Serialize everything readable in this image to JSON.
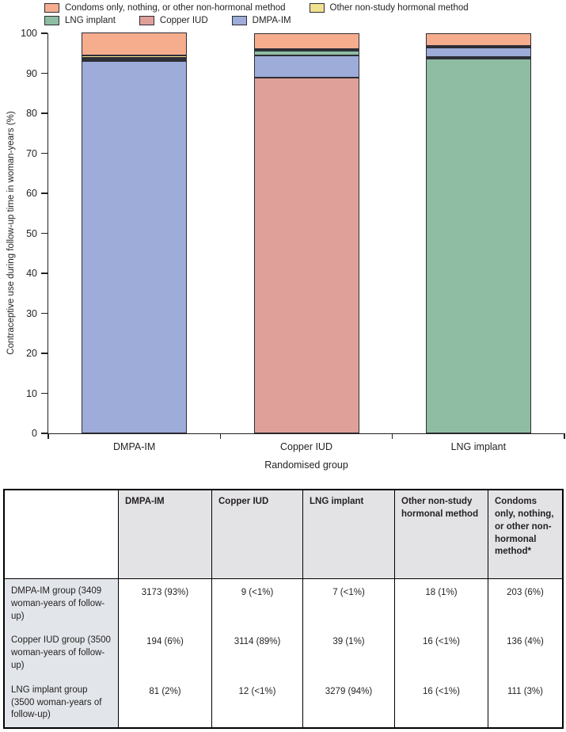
{
  "colors": {
    "condoms": "#F5AD8E",
    "other_hormonal": "#F2E191",
    "lng_implant": "#8EBDA3",
    "copper_iud": "#DFA09A",
    "dmpa_im": "#9DACD8",
    "segment_border": "#2E2E36",
    "axis": "#231F20",
    "table_header_bg": "#E3E3E6",
    "table_label_bg": "#E2E6EA"
  },
  "legend": {
    "rows": [
      [
        {
          "key": "condoms",
          "label": "Condoms only, nothing, or other non-hormonal method"
        },
        {
          "key": "other_hormonal",
          "label": "Other non-study hormonal method"
        }
      ],
      [
        {
          "key": "lng_implant",
          "label": "LNG implant"
        },
        {
          "key": "copper_iud",
          "label": "Copper IUD"
        },
        {
          "key": "dmpa_im",
          "label": "DMPA-IM"
        }
      ]
    ]
  },
  "chart_data": {
    "type": "bar",
    "stacked": true,
    "title": "",
    "xlabel": "Randomised group",
    "ylabel": "Contraceptive use during follow-up time in woman-years (%)",
    "ylim": [
      0,
      100
    ],
    "yticks": [
      0,
      10,
      20,
      30,
      40,
      50,
      60,
      70,
      80,
      90,
      100
    ],
    "grid": false,
    "legend_position": "top",
    "categories": [
      "DMPA-IM",
      "Copper IUD",
      "LNG implant"
    ],
    "bars": [
      {
        "category": "DMPA-IM",
        "segments": [
          {
            "method": "DMPA-IM",
            "key": "dmpa_im",
            "pct": 93.1
          },
          {
            "method": "Copper IUD",
            "key": "copper_iud",
            "pct": 0.3
          },
          {
            "method": "LNG implant",
            "key": "lng_implant",
            "pct": 0.2
          },
          {
            "method": "Other non-study hormonal method",
            "key": "other_hormonal",
            "pct": 0.5
          },
          {
            "method": "Condoms only, nothing, or other non-hormonal method",
            "key": "condoms",
            "pct": 5.9
          }
        ]
      },
      {
        "category": "Copper IUD",
        "segments": [
          {
            "method": "Copper IUD",
            "key": "copper_iud",
            "pct": 89.0
          },
          {
            "method": "DMPA-IM",
            "key": "dmpa_im",
            "pct": 5.5
          },
          {
            "method": "LNG implant",
            "key": "lng_implant",
            "pct": 1.1
          },
          {
            "method": "Other non-study hormonal method",
            "key": "other_hormonal",
            "pct": 0.5
          },
          {
            "method": "Condoms only, nothing, or other non-hormonal method",
            "key": "condoms",
            "pct": 3.9
          }
        ]
      },
      {
        "category": "LNG implant",
        "segments": [
          {
            "method": "LNG implant",
            "key": "lng_implant",
            "pct": 93.7
          },
          {
            "method": "Copper IUD",
            "key": "copper_iud",
            "pct": 0.3
          },
          {
            "method": "DMPA-IM",
            "key": "dmpa_im",
            "pct": 2.3
          },
          {
            "method": "Other non-study hormonal method",
            "key": "other_hormonal",
            "pct": 0.5
          },
          {
            "method": "Condoms only, nothing, or other non-hormonal method",
            "key": "condoms",
            "pct": 3.2
          }
        ]
      }
    ]
  },
  "table": {
    "columns": [
      "",
      "DMPA-IM",
      "Copper IUD",
      "LNG implant",
      "Other non-study hormonal method",
      "Condoms only, nothing, or other non-hormonal method*"
    ],
    "rows": [
      {
        "label": "DMPA-IM group (3409 woman-years of follow-up)",
        "values": [
          "3173 (93%)",
          "9 (<1%)",
          "7 (<1%)",
          "18 (1%)",
          "203 (6%)"
        ]
      },
      {
        "label": "Copper IUD group (3500 woman-years of follow-up)",
        "values": [
          "194 (6%)",
          "3114 (89%)",
          "39 (1%)",
          "16 (<1%)",
          "136 (4%)"
        ]
      },
      {
        "label": "LNG implant group (3500 woman-years of follow-up)",
        "values": [
          "81 (2%)",
          "12 (<1%)",
          "3279 (94%)",
          "16 (<1%)",
          "111 (3%)"
        ]
      }
    ]
  }
}
